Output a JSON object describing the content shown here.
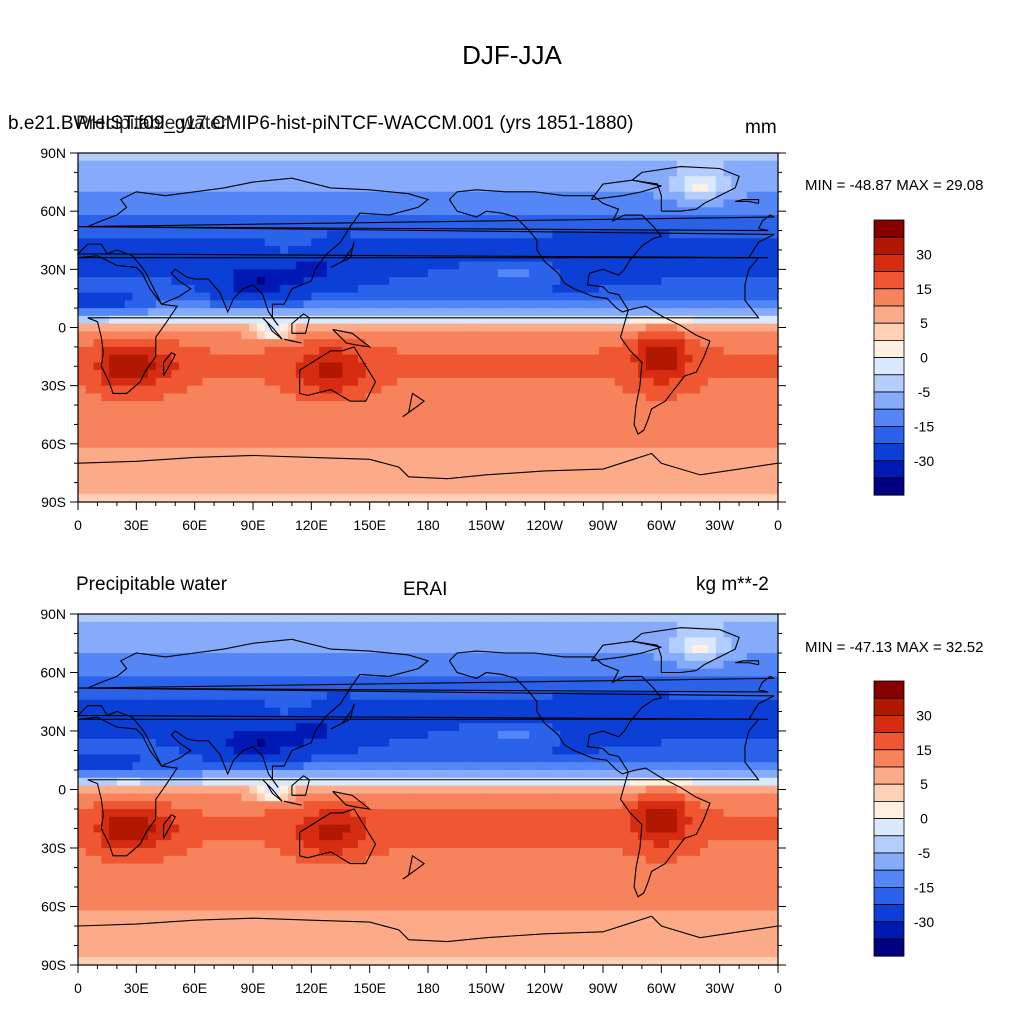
{
  "figure": {
    "title": "DJF-JJA"
  },
  "palette": [
    "#000080",
    "#0019b3",
    "#0b3fd6",
    "#2a62ea",
    "#5486f5",
    "#86abfa",
    "#b3cdfc",
    "#dbe9fe",
    "#fff0e1",
    "#ffd1b6",
    "#fcab88",
    "#f7835c",
    "#ef5632",
    "#d62d12",
    "#b01802",
    "#870000"
  ],
  "axes": {
    "lat_ticks": [
      "90N",
      "60N",
      "30N",
      "0",
      "30S",
      "60S",
      "90S"
    ],
    "lon_ticks": [
      "0",
      "30E",
      "60E",
      "90E",
      "120E",
      "150E",
      "180",
      "150W",
      "120W",
      "90W",
      "60W",
      "30W",
      "0"
    ]
  },
  "panels": [
    {
      "left_label": "Precipitable water",
      "center_label": "b.e21.BWHIST.f09_g17.CMIP6-hist-piNTCF-WACCM.001 (yrs 1851-1880)",
      "right_label": "mm",
      "stats": "MIN = -48.87 MAX =  29.08",
      "colorbar_labels": [
        "30",
        "15",
        "5",
        "0",
        "-5",
        "-15",
        "-30"
      ]
    },
    {
      "left_label": "Precipitable water",
      "center_label": "ERAI",
      "right_label": "kg m**-2",
      "stats": "MIN = -47.13 MAX =  32.52",
      "colorbar_labels": [
        "30",
        "15",
        "5",
        "0",
        "-5",
        "-15",
        "-30"
      ]
    }
  ]
}
